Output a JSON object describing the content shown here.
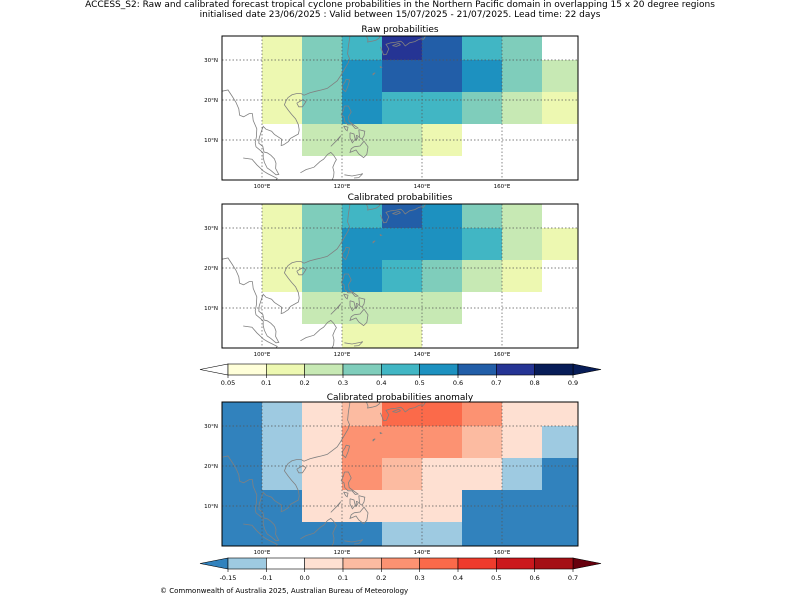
{
  "figure": {
    "title_line1": "ACCESS_S2: Raw and calibrated forecast tropical cyclone probabilities in the Northern Pacific domain in overlapping 15 x 20 degree regions",
    "title_line2": "initialised date 23/06/2025 :  Valid between 15/07/2025 - 21/07/2025. Lead time: 22 days",
    "copyright": "© Commonwealth of Australia 2025, Australian Bureau of Meteorology"
  },
  "chart_data": [
    {
      "type": "heatmap",
      "title": "Raw probabilities",
      "lon_ticks": [
        "100°E",
        "120°E",
        "140°E",
        "160°E"
      ],
      "lat_ticks": [
        "10°N",
        "20°N",
        "30°N"
      ],
      "lon_range": [
        90,
        179
      ],
      "lat_range": [
        0,
        36
      ],
      "lon_edges": [
        90,
        100,
        110,
        120,
        130,
        140,
        150,
        160,
        170,
        179
      ],
      "lat_edges": [
        36,
        30,
        22,
        14,
        6,
        0
      ],
      "values": [
        [
          0,
          0.1,
          0.3,
          0.4,
          0.7,
          0.6,
          0.4,
          0.3,
          0
        ],
        [
          0,
          0.1,
          0.3,
          0.5,
          0.6,
          0.6,
          0.5,
          0.3,
          0.2
        ],
        [
          0,
          0.1,
          0.3,
          0.5,
          0.4,
          0.4,
          0.3,
          0.2,
          0.1
        ],
        [
          0,
          0,
          0.2,
          0.2,
          0.2,
          0.1,
          0,
          0,
          0
        ],
        [
          0,
          0,
          0,
          0,
          0,
          0,
          0,
          0,
          0
        ]
      ]
    },
    {
      "type": "heatmap",
      "title": "Calibrated probabilities",
      "lon_ticks": [
        "100°E",
        "120°E",
        "140°E",
        "160°E"
      ],
      "lat_ticks": [
        "10°N",
        "20°N",
        "30°N"
      ],
      "lon_range": [
        90,
        179
      ],
      "lat_range": [
        0,
        36
      ],
      "lon_edges": [
        90,
        100,
        110,
        120,
        130,
        140,
        150,
        160,
        170,
        179
      ],
      "lat_edges": [
        36,
        30,
        22,
        14,
        6,
        0
      ],
      "values": [
        [
          0,
          0.1,
          0.3,
          0.4,
          0.6,
          0.5,
          0.3,
          0.2,
          0
        ],
        [
          0,
          0.1,
          0.3,
          0.5,
          0.5,
          0.5,
          0.4,
          0.2,
          0.1
        ],
        [
          0,
          0.1,
          0.3,
          0.5,
          0.4,
          0.3,
          0.2,
          0.1,
          0
        ],
        [
          0,
          0,
          0.2,
          0.2,
          0.2,
          0.2,
          0,
          0,
          0
        ],
        [
          0,
          0,
          0,
          0.1,
          0.1,
          0,
          0,
          0,
          0
        ]
      ]
    },
    {
      "type": "heatmap",
      "title": "Calibrated probabilities anomaly",
      "lon_ticks": [
        "100°E",
        "120°E",
        "140°E",
        "160°E"
      ],
      "lat_ticks": [
        "10°N",
        "20°N",
        "30°N"
      ],
      "lon_range": [
        90,
        179
      ],
      "lat_range": [
        0,
        36
      ],
      "lon_edges": [
        90,
        100,
        110,
        120,
        130,
        140,
        150,
        160,
        170,
        179
      ],
      "lat_edges": [
        36,
        30,
        22,
        14,
        6,
        0
      ],
      "values": [
        [
          -0.2,
          -0.12,
          0.05,
          0.15,
          0.35,
          0.35,
          0.25,
          0.05,
          0
        ],
        [
          -0.2,
          -0.12,
          0.05,
          0.25,
          0.25,
          0.25,
          0.15,
          0,
          -0.12
        ],
        [
          -0.2,
          -0.12,
          0.05,
          0.25,
          0.15,
          0.05,
          0.05,
          -0.12,
          -0.2
        ],
        [
          -0.2,
          -0.2,
          0,
          0.05,
          0,
          0,
          -0.2,
          -0.2,
          -0.2
        ],
        [
          -0.2,
          -0.2,
          -0.2,
          -0.2,
          -0.12,
          -0.12,
          -0.2,
          -0.2,
          -0.2
        ]
      ]
    }
  ],
  "colorbars": [
    {
      "ticks": [
        "0.05",
        "0.1",
        "0.2",
        "0.3",
        "0.4",
        "0.5",
        "0.6",
        "0.7",
        "0.8",
        "0.9"
      ],
      "colors": [
        "#ffffd9",
        "#edf8b1",
        "#c7e9b4",
        "#7fcdbb",
        "#41b6c4",
        "#1d91c0",
        "#225ea8",
        "#253494",
        "#081d58"
      ],
      "under": "#ffffff",
      "over": "#081d58"
    },
    {
      "ticks": [
        "-0.15",
        "-0.1",
        "0.0",
        "0.1",
        "0.2",
        "0.3",
        "0.4",
        "0.5",
        "0.6",
        "0.7"
      ],
      "colors": [
        "#9ecae1",
        "#ffffff",
        "#fee0d2",
        "#fcbba1",
        "#fc9272",
        "#fb6a4a",
        "#ef3b2c",
        "#cb181d",
        "#a50f15"
      ],
      "under": "#3182bd",
      "over": "#67000d"
    }
  ],
  "color_scales": {
    "prob_levels": [
      0.05,
      0.1,
      0.2,
      0.3,
      0.4,
      0.5,
      0.6,
      0.7,
      0.8,
      0.9
    ],
    "anom_levels": [
      -0.15,
      -0.1,
      0.0,
      0.1,
      0.2,
      0.3,
      0.4,
      0.5,
      0.6,
      0.7
    ],
    "coast": "#808080",
    "grid": "#555555"
  }
}
